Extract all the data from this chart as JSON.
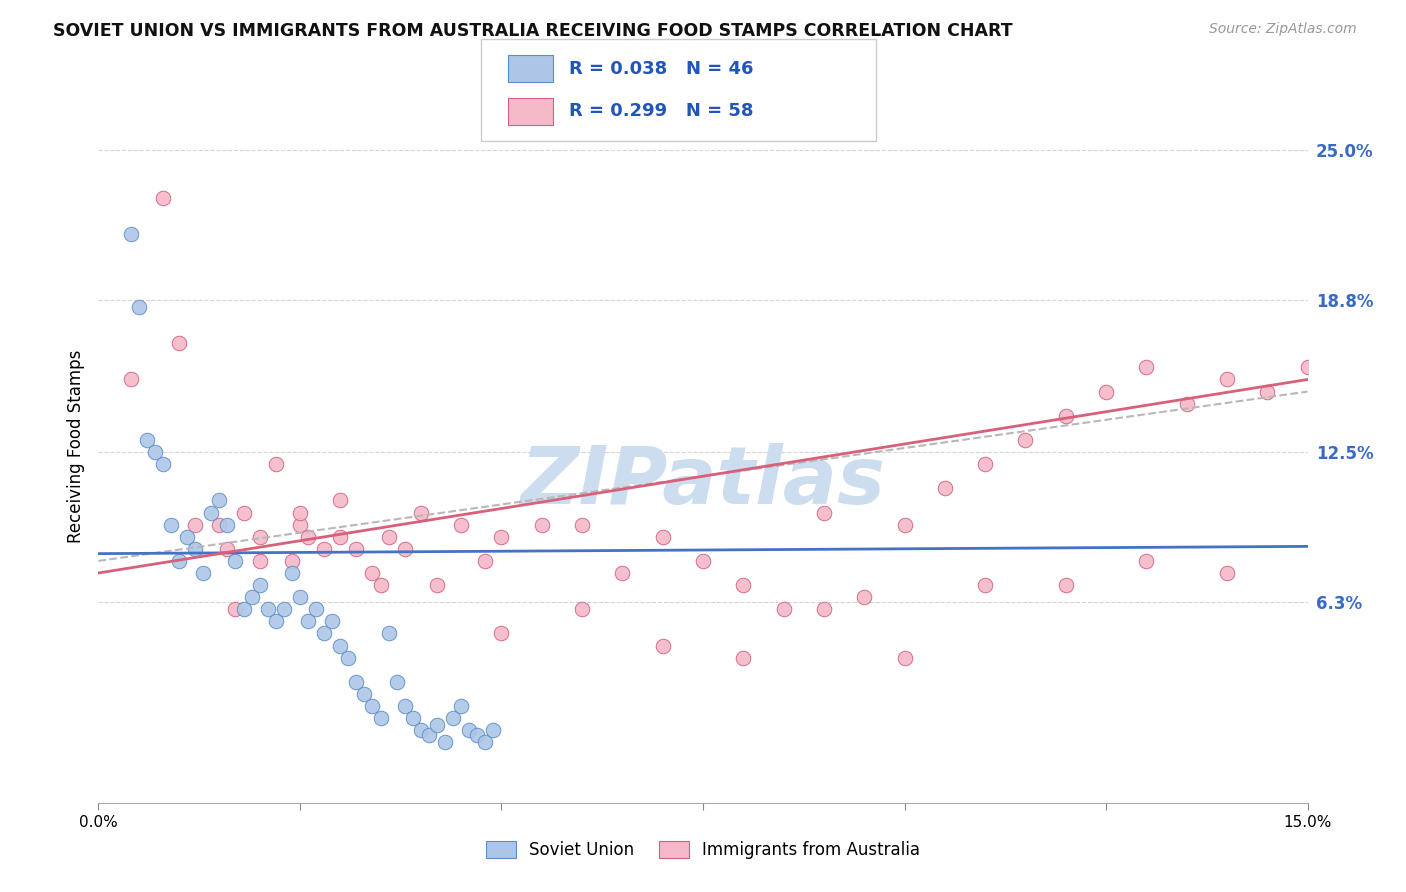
{
  "title": "SOVIET UNION VS IMMIGRANTS FROM AUSTRALIA RECEIVING FOOD STAMPS CORRELATION CHART",
  "source": "Source: ZipAtlas.com",
  "ylabel": "Receiving Food Stamps",
  "ytick_values": [
    0.063,
    0.125,
    0.188,
    0.25
  ],
  "ytick_labels": [
    "6.3%",
    "12.5%",
    "18.8%",
    "25.0%"
  ],
  "xmin": 0.0,
  "xmax": 0.15,
  "ymin": -0.02,
  "ymax": 0.275,
  "color_blue": "#adc6e8",
  "color_pink": "#f5b8c8",
  "edge_blue": "#5b8ec4",
  "edge_pink": "#d06080",
  "line_blue": "#4472c4",
  "line_pink": "#d9607a",
  "line_dash": "#b8b8b8",
  "watermark": "ZIPatlas",
  "watermark_color": "#ccddf0",
  "legend_text1": "R = 0.038   N = 46",
  "legend_text2": "R = 0.299   N = 58",
  "soviet_label": "Soviet Union",
  "aus_label": "Immigrants from Australia",
  "soviet_x": [
    0.004,
    0.005,
    0.006,
    0.007,
    0.008,
    0.009,
    0.01,
    0.011,
    0.012,
    0.013,
    0.014,
    0.015,
    0.016,
    0.017,
    0.018,
    0.019,
    0.02,
    0.021,
    0.022,
    0.023,
    0.024,
    0.025,
    0.026,
    0.027,
    0.028,
    0.029,
    0.03,
    0.031,
    0.032,
    0.033,
    0.034,
    0.035,
    0.036,
    0.037,
    0.038,
    0.039,
    0.04,
    0.041,
    0.042,
    0.043,
    0.044,
    0.045,
    0.046,
    0.047,
    0.048,
    0.049
  ],
  "soviet_y": [
    0.215,
    0.185,
    0.13,
    0.125,
    0.12,
    0.095,
    0.08,
    0.09,
    0.085,
    0.075,
    0.1,
    0.105,
    0.095,
    0.08,
    0.06,
    0.065,
    0.07,
    0.06,
    0.055,
    0.06,
    0.075,
    0.065,
    0.055,
    0.06,
    0.05,
    0.055,
    0.045,
    0.04,
    0.03,
    0.025,
    0.02,
    0.015,
    0.05,
    0.03,
    0.02,
    0.015,
    0.01,
    0.008,
    0.012,
    0.005,
    0.015,
    0.02,
    0.01,
    0.008,
    0.005,
    0.01
  ],
  "aus_x": [
    0.004,
    0.008,
    0.01,
    0.012,
    0.015,
    0.016,
    0.017,
    0.018,
    0.02,
    0.022,
    0.024,
    0.025,
    0.026,
    0.028,
    0.03,
    0.032,
    0.034,
    0.036,
    0.038,
    0.04,
    0.042,
    0.045,
    0.048,
    0.05,
    0.055,
    0.06,
    0.065,
    0.07,
    0.075,
    0.08,
    0.085,
    0.09,
    0.095,
    0.1,
    0.105,
    0.11,
    0.115,
    0.12,
    0.125,
    0.13,
    0.135,
    0.14,
    0.145,
    0.15,
    0.02,
    0.025,
    0.03,
    0.035,
    0.05,
    0.06,
    0.07,
    0.08,
    0.09,
    0.1,
    0.11,
    0.12,
    0.13,
    0.14
  ],
  "aus_y": [
    0.155,
    0.23,
    0.17,
    0.095,
    0.095,
    0.085,
    0.06,
    0.1,
    0.09,
    0.12,
    0.08,
    0.095,
    0.09,
    0.085,
    0.105,
    0.085,
    0.075,
    0.09,
    0.085,
    0.1,
    0.07,
    0.095,
    0.08,
    0.09,
    0.095,
    0.095,
    0.075,
    0.09,
    0.08,
    0.07,
    0.06,
    0.1,
    0.065,
    0.095,
    0.11,
    0.12,
    0.13,
    0.14,
    0.15,
    0.16,
    0.145,
    0.155,
    0.15,
    0.16,
    0.08,
    0.1,
    0.09,
    0.07,
    0.05,
    0.06,
    0.045,
    0.04,
    0.06,
    0.04,
    0.07,
    0.07,
    0.08,
    0.075
  ]
}
